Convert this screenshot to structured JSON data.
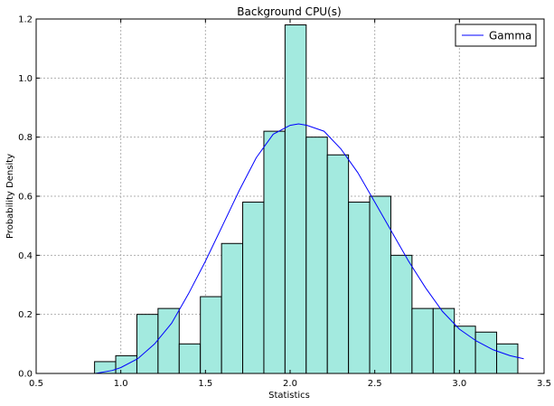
{
  "chart_data": {
    "type": "bar",
    "title": "Background CPU(s)",
    "xlabel": "Statistics",
    "ylabel": "Probability Density",
    "xlim": [
      0.5,
      3.5
    ],
    "ylim": [
      0.0,
      1.2
    ],
    "xticks": [
      "0.5",
      "1.0",
      "1.5",
      "2.0",
      "2.5",
      "3.0",
      "3.5"
    ],
    "yticks": [
      "0.0",
      "0.2",
      "0.4",
      "0.6",
      "0.8",
      "1.0",
      "1.2"
    ],
    "grid": true,
    "legend_position": "top-right",
    "bar_color": "#a3eadf",
    "bin_edges": [
      0.845,
      0.97,
      1.095,
      1.22,
      1.345,
      1.47,
      1.595,
      1.72,
      1.845,
      1.97,
      2.095,
      2.22,
      2.345,
      2.47,
      2.595,
      2.72,
      2.845,
      2.97,
      3.095,
      3.22,
      3.345
    ],
    "values": [
      0.04,
      0.06,
      0.2,
      0.22,
      0.1,
      0.26,
      0.44,
      0.58,
      0.82,
      1.18,
      0.8,
      0.74,
      0.58,
      0.6,
      0.4,
      0.22,
      0.22,
      0.16,
      0.14,
      0.1
    ],
    "series": [
      {
        "name": "Gamma",
        "color": "#0000ff",
        "x": [
          0.85,
          0.95,
          1.0,
          1.1,
          1.2,
          1.3,
          1.4,
          1.5,
          1.6,
          1.7,
          1.8,
          1.9,
          2.0,
          2.05,
          2.1,
          2.2,
          2.3,
          2.4,
          2.5,
          2.6,
          2.7,
          2.8,
          2.9,
          3.0,
          3.1,
          3.2,
          3.3,
          3.38
        ],
        "y": [
          0.0,
          0.01,
          0.02,
          0.05,
          0.1,
          0.17,
          0.27,
          0.38,
          0.5,
          0.62,
          0.73,
          0.81,
          0.84,
          0.845,
          0.84,
          0.82,
          0.76,
          0.68,
          0.58,
          0.48,
          0.38,
          0.29,
          0.21,
          0.15,
          0.11,
          0.08,
          0.06,
          0.05
        ]
      }
    ]
  }
}
